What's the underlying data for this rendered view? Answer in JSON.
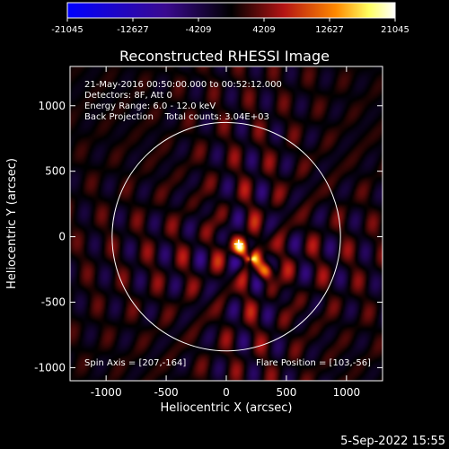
{
  "chart_data": {
    "type": "heatmap",
    "title": "Reconstructed RHESSI Image",
    "xlabel": "Heliocentric X (arcsec)",
    "ylabel": "Heliocentric Y (arcsec)",
    "xlim": [
      -1300,
      1300
    ],
    "ylim": [
      -1100,
      1300
    ],
    "xticks": [
      -1000,
      -500,
      0,
      500,
      1000
    ],
    "yticks": [
      -1000,
      -500,
      0,
      500,
      1000
    ],
    "colorbar": {
      "ticks": [
        -21045,
        -12627,
        -4209,
        4209,
        12627,
        21045
      ],
      "range": [
        -21045,
        21045
      ],
      "colors": [
        "#0000ff",
        "#3a0a8f",
        "#000000",
        "#b41414",
        "#ff8a00",
        "#ffff60",
        "#ffffff"
      ]
    },
    "info_lines": [
      "21-May-2016 00:50:00.000 to 00:52:12.000",
      "Detectors: 8F, Att 0",
      "Energy Range: 6.0 - 12.0 keV",
      "Back Projection    Total counts: 3.04E+03"
    ],
    "footer_left": "Spin Axis = [207,-164]",
    "footer_right": "Flare Position = [103,-56]",
    "solar_disk": {
      "center": [
        0,
        0
      ],
      "radius": 950
    },
    "spin_axis": [
      207,
      -164
    ],
    "flare_position": [
      103,
      -56
    ],
    "sources": [
      {
        "x": 120,
        "y": -80,
        "amp": 21045
      },
      {
        "x": 330,
        "y": -260,
        "amp": 17000
      },
      {
        "x": 230,
        "y": -150,
        "amp": 12000
      }
    ]
  },
  "timestamp": "5-Sep-2022 15:55"
}
